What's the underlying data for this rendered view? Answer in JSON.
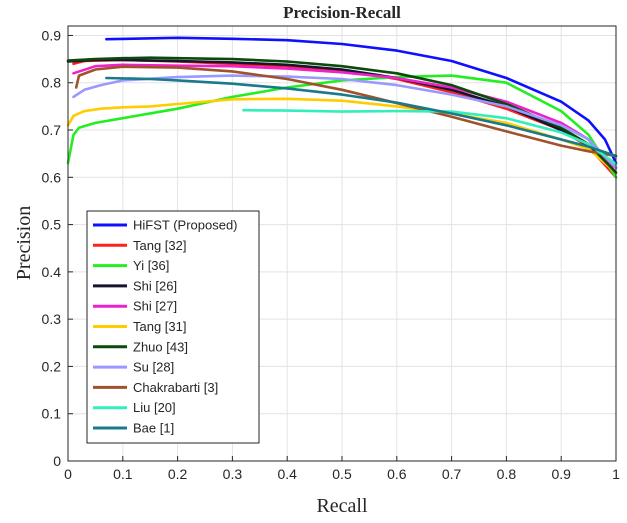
{
  "chart_data": {
    "type": "line",
    "title": "Precision-Recall",
    "xlabel": "Recall",
    "ylabel": "Precision",
    "xlim": [
      0,
      1
    ],
    "ylim": [
      0,
      0.92
    ],
    "x_ticks": [
      "0",
      "0.1",
      "0.2",
      "0.3",
      "0.4",
      "0.5",
      "0.6",
      "0.7",
      "0.8",
      "0.9",
      "1"
    ],
    "y_ticks": [
      "0",
      "0.1",
      "0.2",
      "0.3",
      "0.4",
      "0.5",
      "0.6",
      "0.7",
      "0.8",
      "0.9"
    ],
    "grid": true,
    "legend_position": "lower-left",
    "series": [
      {
        "name": "HiFST (Proposed)",
        "color": "#1010ff",
        "x": [
          0.07,
          0.2,
          0.3,
          0.4,
          0.5,
          0.6,
          0.7,
          0.8,
          0.9,
          0.95,
          0.98,
          1.0
        ],
        "y": [
          0.892,
          0.895,
          0.893,
          0.89,
          0.882,
          0.868,
          0.846,
          0.81,
          0.76,
          0.72,
          0.68,
          0.63
        ]
      },
      {
        "name": "Tang [32]",
        "color": "#ff2020",
        "x": [
          0.01,
          0.03,
          0.1,
          0.2,
          0.3,
          0.4,
          0.5,
          0.6,
          0.7,
          0.8,
          0.9,
          0.95,
          1.0
        ],
        "y": [
          0.84,
          0.846,
          0.848,
          0.845,
          0.84,
          0.835,
          0.826,
          0.808,
          0.78,
          0.745,
          0.7,
          0.665,
          0.6
        ]
      },
      {
        "name": "Yi [36]",
        "color": "#22ee22",
        "x": [
          0.0,
          0.005,
          0.01,
          0.02,
          0.05,
          0.1,
          0.2,
          0.3,
          0.4,
          0.5,
          0.6,
          0.7,
          0.8,
          0.9,
          0.95,
          1.0
        ],
        "y": [
          0.63,
          0.66,
          0.69,
          0.705,
          0.715,
          0.725,
          0.745,
          0.77,
          0.79,
          0.805,
          0.812,
          0.815,
          0.8,
          0.74,
          0.69,
          0.6
        ]
      },
      {
        "name": "Shi [26]",
        "color": "#151530",
        "x": [
          0.0,
          0.05,
          0.1,
          0.2,
          0.3,
          0.4,
          0.5,
          0.6,
          0.7,
          0.8,
          0.9,
          0.95,
          1.0
        ],
        "y": [
          0.845,
          0.848,
          0.848,
          0.846,
          0.843,
          0.838,
          0.828,
          0.81,
          0.785,
          0.75,
          0.7,
          0.668,
          0.62
        ]
      },
      {
        "name": "Shi [27]",
        "color": "#ee22cc",
        "x": [
          0.01,
          0.05,
          0.1,
          0.2,
          0.3,
          0.4,
          0.5,
          0.6,
          0.7,
          0.8,
          0.9,
          0.95,
          1.0
        ],
        "y": [
          0.82,
          0.835,
          0.838,
          0.836,
          0.835,
          0.83,
          0.822,
          0.81,
          0.79,
          0.76,
          0.715,
          0.68,
          0.61
        ]
      },
      {
        "name": "Tang [31]",
        "color": "#ffcc00",
        "x": [
          0.0,
          0.01,
          0.03,
          0.06,
          0.1,
          0.15,
          0.2,
          0.3,
          0.4,
          0.5,
          0.6,
          0.7,
          0.8,
          0.9,
          0.95,
          1.0
        ],
        "y": [
          0.71,
          0.73,
          0.74,
          0.745,
          0.748,
          0.75,
          0.755,
          0.765,
          0.766,
          0.762,
          0.75,
          0.735,
          0.715,
          0.68,
          0.66,
          0.61
        ]
      },
      {
        "name": "Zhuo [43]",
        "color": "#0a4a0a",
        "x": [
          0.0,
          0.05,
          0.1,
          0.15,
          0.2,
          0.3,
          0.4,
          0.5,
          0.6,
          0.7,
          0.8,
          0.9,
          0.95,
          1.0
        ],
        "y": [
          0.847,
          0.85,
          0.852,
          0.853,
          0.852,
          0.85,
          0.845,
          0.835,
          0.82,
          0.795,
          0.755,
          0.705,
          0.67,
          0.61
        ]
      },
      {
        "name": "Su [28]",
        "color": "#9999ff",
        "x": [
          0.01,
          0.03,
          0.06,
          0.1,
          0.2,
          0.3,
          0.4,
          0.5,
          0.6,
          0.7,
          0.8,
          0.9,
          0.95,
          1.0
        ],
        "y": [
          0.77,
          0.785,
          0.795,
          0.805,
          0.812,
          0.815,
          0.813,
          0.808,
          0.795,
          0.775,
          0.75,
          0.71,
          0.68,
          0.62
        ]
      },
      {
        "name": "Chakrabarti [3]",
        "color": "#a0522d",
        "x": [
          0.015,
          0.02,
          0.05,
          0.1,
          0.2,
          0.3,
          0.4,
          0.5,
          0.6,
          0.7,
          0.8,
          0.9,
          0.95,
          1.0
        ],
        "y": [
          0.79,
          0.815,
          0.828,
          0.834,
          0.832,
          0.824,
          0.808,
          0.785,
          0.757,
          0.728,
          0.697,
          0.667,
          0.655,
          0.645
        ]
      },
      {
        "name": "Liu [20]",
        "color": "#33eebb",
        "x": [
          0.32,
          0.4,
          0.5,
          0.6,
          0.7,
          0.8,
          0.9,
          0.95,
          1.0
        ],
        "y": [
          0.742,
          0.741,
          0.739,
          0.74,
          0.739,
          0.725,
          0.695,
          0.67,
          0.628
        ]
      },
      {
        "name": "Bae [1]",
        "color": "#1a7a8a",
        "x": [
          0.07,
          0.15,
          0.2,
          0.3,
          0.4,
          0.5,
          0.6,
          0.7,
          0.8,
          0.9,
          0.95,
          1.0
        ],
        "y": [
          0.81,
          0.808,
          0.805,
          0.798,
          0.788,
          0.775,
          0.758,
          0.735,
          0.71,
          0.68,
          0.665,
          0.645
        ]
      }
    ]
  }
}
